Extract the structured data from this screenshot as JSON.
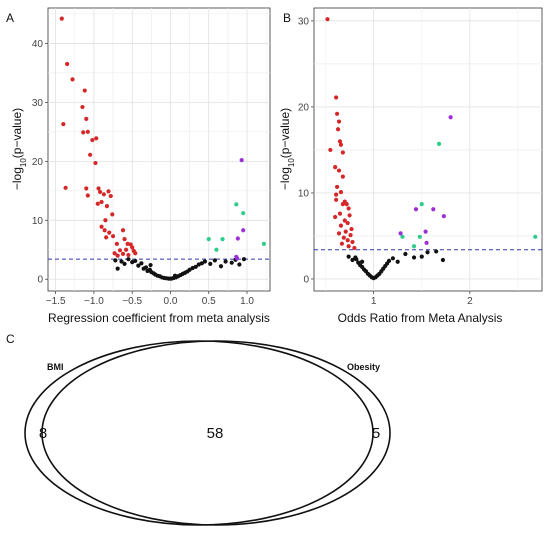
{
  "panel_labels": {
    "a": "A",
    "b": "B",
    "c": "C"
  },
  "colors": {
    "neg_significant": "#d62728",
    "not_significant": "#111111",
    "pos_moderate": "#2ecc8a",
    "pos_strong": "#9b30d9",
    "threshold_line": "#2b3aa8"
  },
  "chart_data": [
    {
      "type": "scatter",
      "panel": "A",
      "xlabel": "Regression coefficient from meta analysis",
      "ylabel": "-log10(p-value)",
      "ylabel_main": "−log",
      "ylabel_sub": "10",
      "ylabel_tail": "(p−value)",
      "xlim": [
        -1.6,
        1.3
      ],
      "ylim": [
        -2,
        46
      ],
      "xticks": [
        -1.5,
        -1.0,
        -0.5,
        0.0,
        0.5,
        1.0
      ],
      "xtick_labels": [
        "−1.5",
        "−1.0",
        "−0.5",
        "0.0",
        "0.5",
        "1.0"
      ],
      "yticks": [
        0,
        10,
        20,
        30,
        40
      ],
      "ytick_labels": [
        "0",
        "10",
        "20",
        "30",
        "40"
      ],
      "threshold": 3.4,
      "grid": true,
      "series": [
        {
          "color": "#d62728",
          "points": [
            [
              -1.42,
              44.2
            ],
            [
              -1.35,
              36.5
            ],
            [
              -1.4,
              26.3
            ],
            [
              -1.28,
              33.9
            ],
            [
              -1.12,
              32.0
            ],
            [
              -1.15,
              29.2
            ],
            [
              -1.1,
              27.2
            ],
            [
              -1.14,
              24.9
            ],
            [
              -1.08,
              25.0
            ],
            [
              -1.02,
              23.6
            ],
            [
              -0.97,
              23.9
            ],
            [
              -1.05,
              21.1
            ],
            [
              -1.37,
              15.5
            ],
            [
              -0.98,
              19.7
            ],
            [
              -0.94,
              15.4
            ],
            [
              -1.1,
              15.4
            ],
            [
              -1.08,
              14.2
            ],
            [
              -0.92,
              14.8
            ],
            [
              -0.87,
              14.4
            ],
            [
              -0.81,
              14.9
            ],
            [
              -0.9,
              13.1
            ],
            [
              -0.83,
              12.4
            ],
            [
              -0.78,
              14.1
            ],
            [
              -0.76,
              11.0
            ],
            [
              -0.85,
              10.0
            ],
            [
              -0.95,
              12.8
            ],
            [
              -0.9,
              8.9
            ],
            [
              -0.86,
              8.3
            ],
            [
              -0.84,
              7.1
            ],
            [
              -0.8,
              7.9
            ],
            [
              -0.75,
              7.3
            ],
            [
              -0.7,
              6.0
            ],
            [
              -0.62,
              8.3
            ],
            [
              -0.6,
              6.8
            ],
            [
              -0.56,
              6.0
            ],
            [
              -0.52,
              5.9
            ],
            [
              -0.5,
              5.4
            ],
            [
              -0.48,
              4.8
            ],
            [
              -0.46,
              4.4
            ],
            [
              -0.55,
              4.1
            ],
            [
              -0.62,
              4.3
            ],
            [
              -0.58,
              5.0
            ],
            [
              -0.66,
              4.9
            ],
            [
              -0.69,
              4.0
            ],
            [
              -0.73,
              4.4
            ]
          ]
        },
        {
          "color": "#111111",
          "points": [
            [
              -0.72,
              3.2
            ],
            [
              -0.69,
              1.8
            ],
            [
              -0.64,
              3.0
            ],
            [
              -0.6,
              2.6
            ],
            [
              -0.55,
              3.4
            ],
            [
              -0.5,
              2.9
            ],
            [
              -0.46,
              3.1
            ],
            [
              -0.42,
              2.3
            ],
            [
              -0.38,
              2.7
            ],
            [
              -0.35,
              1.8
            ],
            [
              -0.32,
              2.0
            ],
            [
              -0.3,
              1.4
            ],
            [
              -0.27,
              1.6
            ],
            [
              -0.25,
              1.2
            ],
            [
              -0.22,
              1.0
            ],
            [
              -0.2,
              0.8
            ],
            [
              -0.17,
              0.6
            ],
            [
              -0.14,
              0.5
            ],
            [
              -0.11,
              0.3
            ],
            [
              -0.08,
              0.2
            ],
            [
              -0.05,
              0.15
            ],
            [
              -0.02,
              0.1
            ],
            [
              0.01,
              0.1
            ],
            [
              0.04,
              0.2
            ],
            [
              0.07,
              0.3
            ],
            [
              0.1,
              0.5
            ],
            [
              0.13,
              0.7
            ],
            [
              0.16,
              0.9
            ],
            [
              0.19,
              1.1
            ],
            [
              0.22,
              1.3
            ],
            [
              0.25,
              1.6
            ],
            [
              0.29,
              1.9
            ],
            [
              0.33,
              2.1
            ],
            [
              0.37,
              2.5
            ],
            [
              0.41,
              2.7
            ],
            [
              0.45,
              3.0
            ],
            [
              0.52,
              2.6
            ],
            [
              0.58,
              3.2
            ],
            [
              0.66,
              2.2
            ],
            [
              0.72,
              3.0
            ],
            [
              0.8,
              2.8
            ],
            [
              0.85,
              3.3
            ],
            [
              0.9,
              2.5
            ],
            [
              0.96,
              3.4
            ],
            [
              -0.26,
              2.4
            ],
            [
              0.06,
              0.6
            ]
          ]
        },
        {
          "color": "#2ecc8a",
          "points": [
            [
              0.5,
              6.8
            ],
            [
              0.6,
              5.0
            ],
            [
              0.68,
              6.8
            ],
            [
              0.86,
              12.7
            ],
            [
              1.22,
              6.0
            ],
            [
              0.95,
              11.2
            ]
          ]
        },
        {
          "color": "#9b30d9",
          "points": [
            [
              0.93,
              20.2
            ],
            [
              0.95,
              8.3
            ],
            [
              0.88,
              6.9
            ],
            [
              0.86,
              3.8
            ],
            [
              0.87,
              3.5
            ]
          ]
        }
      ]
    },
    {
      "type": "scatter",
      "panel": "B",
      "xlabel": "Odds Ratio from Meta Analysis",
      "ylabel": "-log10(p-value)",
      "ylabel_main": "−log",
      "ylabel_sub": "10",
      "ylabel_tail": "(p−value)",
      "xlim": [
        0.38,
        2.75
      ],
      "ylim": [
        -1.4,
        31.5
      ],
      "xticks": [
        1,
        2
      ],
      "xtick_labels": [
        "1",
        "2"
      ],
      "yticks": [
        0,
        10,
        20,
        30
      ],
      "ytick_labels": [
        "0",
        "10",
        "20",
        "30"
      ],
      "threshold": 3.4,
      "grid": true,
      "series": [
        {
          "color": "#d62728",
          "points": [
            [
              0.52,
              30.2
            ],
            [
              0.61,
              21.1
            ],
            [
              0.62,
              19.2
            ],
            [
              0.64,
              18.3
            ],
            [
              0.63,
              17.4
            ],
            [
              0.65,
              16.0
            ],
            [
              0.66,
              15.6
            ],
            [
              0.68,
              14.7
            ],
            [
              0.55,
              15.0
            ],
            [
              0.6,
              13.0
            ],
            [
              0.64,
              12.6
            ],
            [
              0.68,
              11.9
            ],
            [
              0.62,
              10.7
            ],
            [
              0.66,
              10.1
            ],
            [
              0.61,
              9.8
            ],
            [
              0.7,
              9.0
            ],
            [
              0.72,
              8.7
            ],
            [
              0.68,
              8.7
            ],
            [
              0.74,
              8.2
            ],
            [
              0.75,
              7.4
            ],
            [
              0.65,
              7.6
            ],
            [
              0.6,
              7.2
            ],
            [
              0.7,
              6.8
            ],
            [
              0.73,
              6.5
            ],
            [
              0.66,
              6.2
            ],
            [
              0.77,
              5.8
            ],
            [
              0.71,
              5.5
            ],
            [
              0.64,
              5.3
            ],
            [
              0.76,
              5.1
            ],
            [
              0.69,
              4.8
            ],
            [
              0.73,
              4.5
            ],
            [
              0.78,
              4.3
            ],
            [
              0.67,
              4.1
            ],
            [
              0.74,
              3.8
            ],
            [
              0.8,
              3.6
            ],
            [
              0.61,
              9.2
            ]
          ]
        },
        {
          "color": "#111111",
          "points": [
            [
              0.74,
              2.6
            ],
            [
              0.78,
              2.2
            ],
            [
              0.81,
              2.5
            ],
            [
              0.84,
              1.9
            ],
            [
              0.86,
              1.6
            ],
            [
              0.88,
              1.4
            ],
            [
              0.9,
              1.1
            ],
            [
              0.92,
              0.9
            ],
            [
              0.94,
              0.6
            ],
            [
              0.96,
              0.4
            ],
            [
              0.98,
              0.2
            ],
            [
              1.0,
              0.1
            ],
            [
              1.02,
              0.2
            ],
            [
              1.04,
              0.4
            ],
            [
              1.06,
              0.6
            ],
            [
              1.08,
              0.9
            ],
            [
              1.1,
              1.2
            ],
            [
              1.12,
              1.5
            ],
            [
              1.14,
              1.8
            ],
            [
              1.16,
              2.1
            ],
            [
              1.2,
              2.4
            ],
            [
              1.25,
              2.0
            ],
            [
              1.33,
              2.9
            ],
            [
              1.42,
              2.5
            ],
            [
              1.5,
              2.6
            ],
            [
              1.56,
              3.1
            ],
            [
              1.65,
              3.2
            ],
            [
              1.72,
              2.2
            ],
            [
              0.82,
              2.3
            ],
            [
              0.88,
              2.0
            ]
          ]
        },
        {
          "color": "#2ecc8a",
          "points": [
            [
              1.3,
              4.9
            ],
            [
              1.42,
              3.8
            ],
            [
              1.48,
              4.9
            ],
            [
              1.5,
              8.7
            ],
            [
              1.68,
              15.7
            ],
            [
              2.68,
              4.9
            ]
          ]
        },
        {
          "color": "#9b30d9",
          "points": [
            [
              1.8,
              18.8
            ],
            [
              1.28,
              5.3
            ],
            [
              1.44,
              8.1
            ],
            [
              1.54,
              5.5
            ],
            [
              1.55,
              4.2
            ],
            [
              1.73,
              7.3
            ],
            [
              1.62,
              8.1
            ]
          ]
        }
      ]
    }
  ],
  "venn": {
    "left_label": "BMI",
    "right_label": "Obesity",
    "left_only": "8",
    "both": "58",
    "right_only": "5"
  }
}
